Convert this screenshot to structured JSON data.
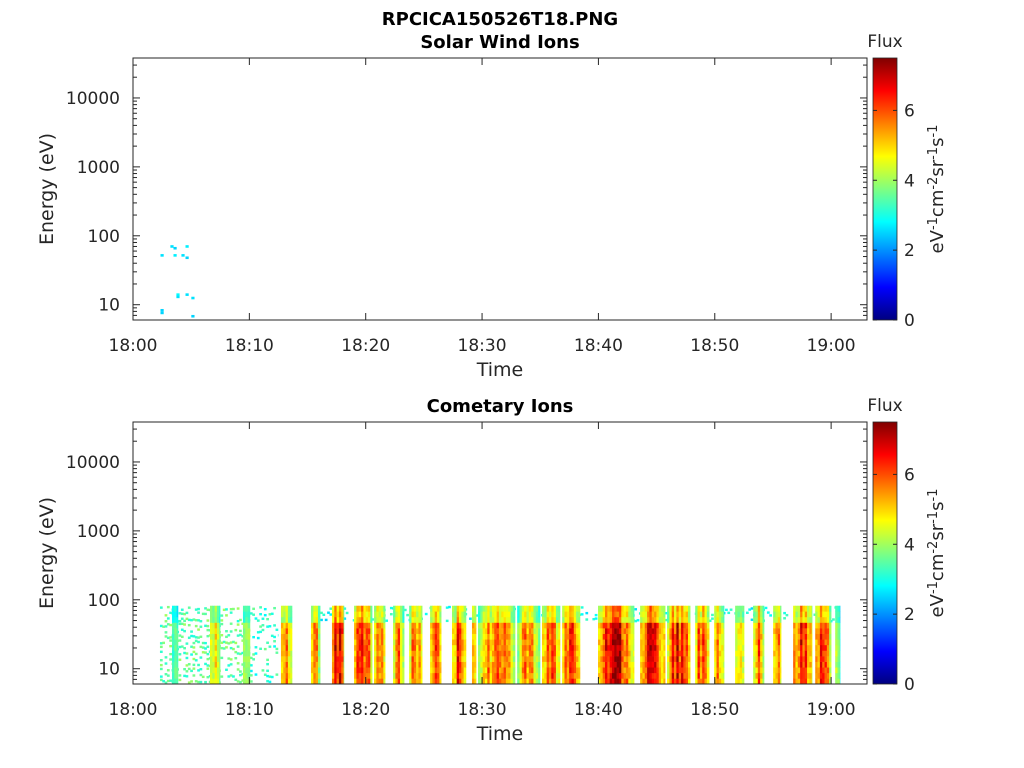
{
  "figure": {
    "title": "RPCICA150526T18.PNG"
  },
  "chart_data": [
    {
      "type": "heatmap",
      "title": "Solar Wind Ions",
      "xlabel": "Time",
      "ylabel": "Energy (eV)",
      "x_ticks": [
        "18:00",
        "18:10",
        "18:20",
        "18:30",
        "18:40",
        "18:50",
        "19:00"
      ],
      "xlim": [
        "18:00:00",
        "19:03:05"
      ],
      "y_ticks": [
        10,
        100,
        1000,
        10000
      ],
      "ylim": [
        6,
        38000
      ],
      "yscale": "log",
      "grid": false,
      "colorbar": {
        "label": "Flux",
        "units": [
          {
            "base": "eV",
            "sup": "-1"
          },
          {
            "base": "cm",
            "sup": "-2"
          },
          {
            "base": "sr",
            "sup": "-1"
          },
          {
            "base": "s",
            "sup": "-1"
          }
        ],
        "ticks": [
          0,
          2,
          4,
          6
        ],
        "clim": [
          0,
          7.5
        ],
        "colormap": "jet"
      },
      "detections": [
        {
          "time": "18:02:30",
          "energy_eV": 52,
          "flux": 2.6
        },
        {
          "time": "18:02:30",
          "energy_eV": 8.3,
          "flux": 2.5
        },
        {
          "time": "18:02:30",
          "energy_eV": 7.6,
          "flux": 2.5
        },
        {
          "time": "18:03:21",
          "energy_eV": 70,
          "flux": 2.6
        },
        {
          "time": "18:03:37",
          "energy_eV": 66,
          "flux": 2.5
        },
        {
          "time": "18:03:37",
          "energy_eV": 52,
          "flux": 2.7
        },
        {
          "time": "18:03:52",
          "energy_eV": 14,
          "flux": 2.8
        },
        {
          "time": "18:03:52",
          "energy_eV": 13,
          "flux": 2.6
        },
        {
          "time": "18:04:18",
          "energy_eV": 52,
          "flux": 2.6
        },
        {
          "time": "18:04:39",
          "energy_eV": 70,
          "flux": 2.7
        },
        {
          "time": "18:04:39",
          "energy_eV": 48,
          "flux": 2.5
        },
        {
          "time": "18:04:39",
          "energy_eV": 14,
          "flux": 2.6
        },
        {
          "time": "18:05:09",
          "energy_eV": 12.5,
          "flux": 2.6
        },
        {
          "time": "18:05:09",
          "energy_eV": 6.8,
          "flux": 2.5
        }
      ]
    },
    {
      "type": "heatmap",
      "title": "Cometary Ions",
      "xlabel": "Time",
      "ylabel": "Energy (eV)",
      "x_ticks": [
        "18:00",
        "18:10",
        "18:20",
        "18:30",
        "18:40",
        "18:50",
        "19:00"
      ],
      "xlim": [
        "18:00:00",
        "19:03:05"
      ],
      "y_ticks": [
        10,
        100,
        1000,
        10000
      ],
      "ylim": [
        6,
        38000
      ],
      "yscale": "log",
      "grid": false,
      "colorbar": {
        "label": "Flux",
        "units": [
          {
            "base": "eV",
            "sup": "-1"
          },
          {
            "base": "cm",
            "sup": "-2"
          },
          {
            "base": "sr",
            "sup": "-1"
          },
          {
            "base": "s",
            "sup": "-1"
          }
        ],
        "ticks": [
          0,
          2,
          4,
          6
        ],
        "clim": [
          0,
          7.5
        ],
        "colormap": "jet"
      },
      "energy_range_eV": [
        6,
        82
      ],
      "bursts": [
        {
          "start": "18:03:21",
          "end": "18:03:52",
          "peak_flux": 4.6
        },
        {
          "start": "18:06:37",
          "end": "18:07:29",
          "peak_flux": 5.2
        },
        {
          "start": "18:09:27",
          "end": "18:10:03",
          "peak_flux": 4.8
        },
        {
          "start": "18:12:43",
          "end": "18:13:40",
          "peak_flux": 6.2
        },
        {
          "start": "18:15:18",
          "end": "18:16:05",
          "peak_flux": 5.8
        },
        {
          "start": "18:17:06",
          "end": "18:18:08",
          "peak_flux": 7.2
        },
        {
          "start": "18:19:00",
          "end": "18:20:33",
          "peak_flux": 7.2
        },
        {
          "start": "18:20:43",
          "end": "18:21:40",
          "peak_flux": 6.9
        },
        {
          "start": "18:22:21",
          "end": "18:23:18",
          "peak_flux": 6.3
        },
        {
          "start": "18:23:44",
          "end": "18:24:51",
          "peak_flux": 6.1
        },
        {
          "start": "18:25:32",
          "end": "18:26:29",
          "peak_flux": 6.4
        },
        {
          "start": "18:27:25",
          "end": "18:28:37",
          "peak_flux": 6.6
        },
        {
          "start": "18:29:08",
          "end": "18:29:29",
          "peak_flux": 5.9
        },
        {
          "start": "18:29:39",
          "end": "18:32:50",
          "peak_flux": 6.2
        },
        {
          "start": "18:33:01",
          "end": "18:34:59",
          "peak_flux": 6.1
        },
        {
          "start": "18:35:09",
          "end": "18:36:42",
          "peak_flux": 6.3
        },
        {
          "start": "18:36:53",
          "end": "18:38:25",
          "peak_flux": 6.5
        },
        {
          "start": "18:39:58",
          "end": "18:43:04",
          "peak_flux": 7.3
        },
        {
          "start": "18:43:35",
          "end": "18:45:44",
          "peak_flux": 7.1
        },
        {
          "start": "18:45:54",
          "end": "18:47:53",
          "peak_flux": 7.0
        },
        {
          "start": "18:48:19",
          "end": "18:49:31",
          "peak_flux": 6.5
        },
        {
          "start": "18:49:57",
          "end": "18:50:48",
          "peak_flux": 6.1
        },
        {
          "start": "18:51:45",
          "end": "18:52:31",
          "peak_flux": 5.4
        },
        {
          "start": "18:53:18",
          "end": "18:54:14",
          "peak_flux": 6.2
        },
        {
          "start": "18:55:01",
          "end": "18:55:42",
          "peak_flux": 6.0
        },
        {
          "start": "18:56:44",
          "end": "18:58:22",
          "peak_flux": 7.1
        },
        {
          "start": "18:58:38",
          "end": "19:00:00",
          "peak_flux": 7.0
        },
        {
          "start": "19:00:21",
          "end": "19:00:46",
          "peak_flux": 4.5
        }
      ],
      "sparse": [
        {
          "start": "18:02:19",
          "end": "18:10:03",
          "flux": 3.5,
          "coverage": 0.55,
          "energy_range_eV": [
            6,
            82
          ]
        },
        {
          "start": "18:10:03",
          "end": "18:12:28",
          "flux": 3.2,
          "coverage": 0.3,
          "energy_range_eV": [
            6,
            82
          ]
        },
        {
          "start": "18:16:05",
          "end": "19:00:46",
          "flux": 2.9,
          "coverage": 0.22,
          "energy_range_eV": [
            45,
            82
          ]
        }
      ]
    }
  ]
}
